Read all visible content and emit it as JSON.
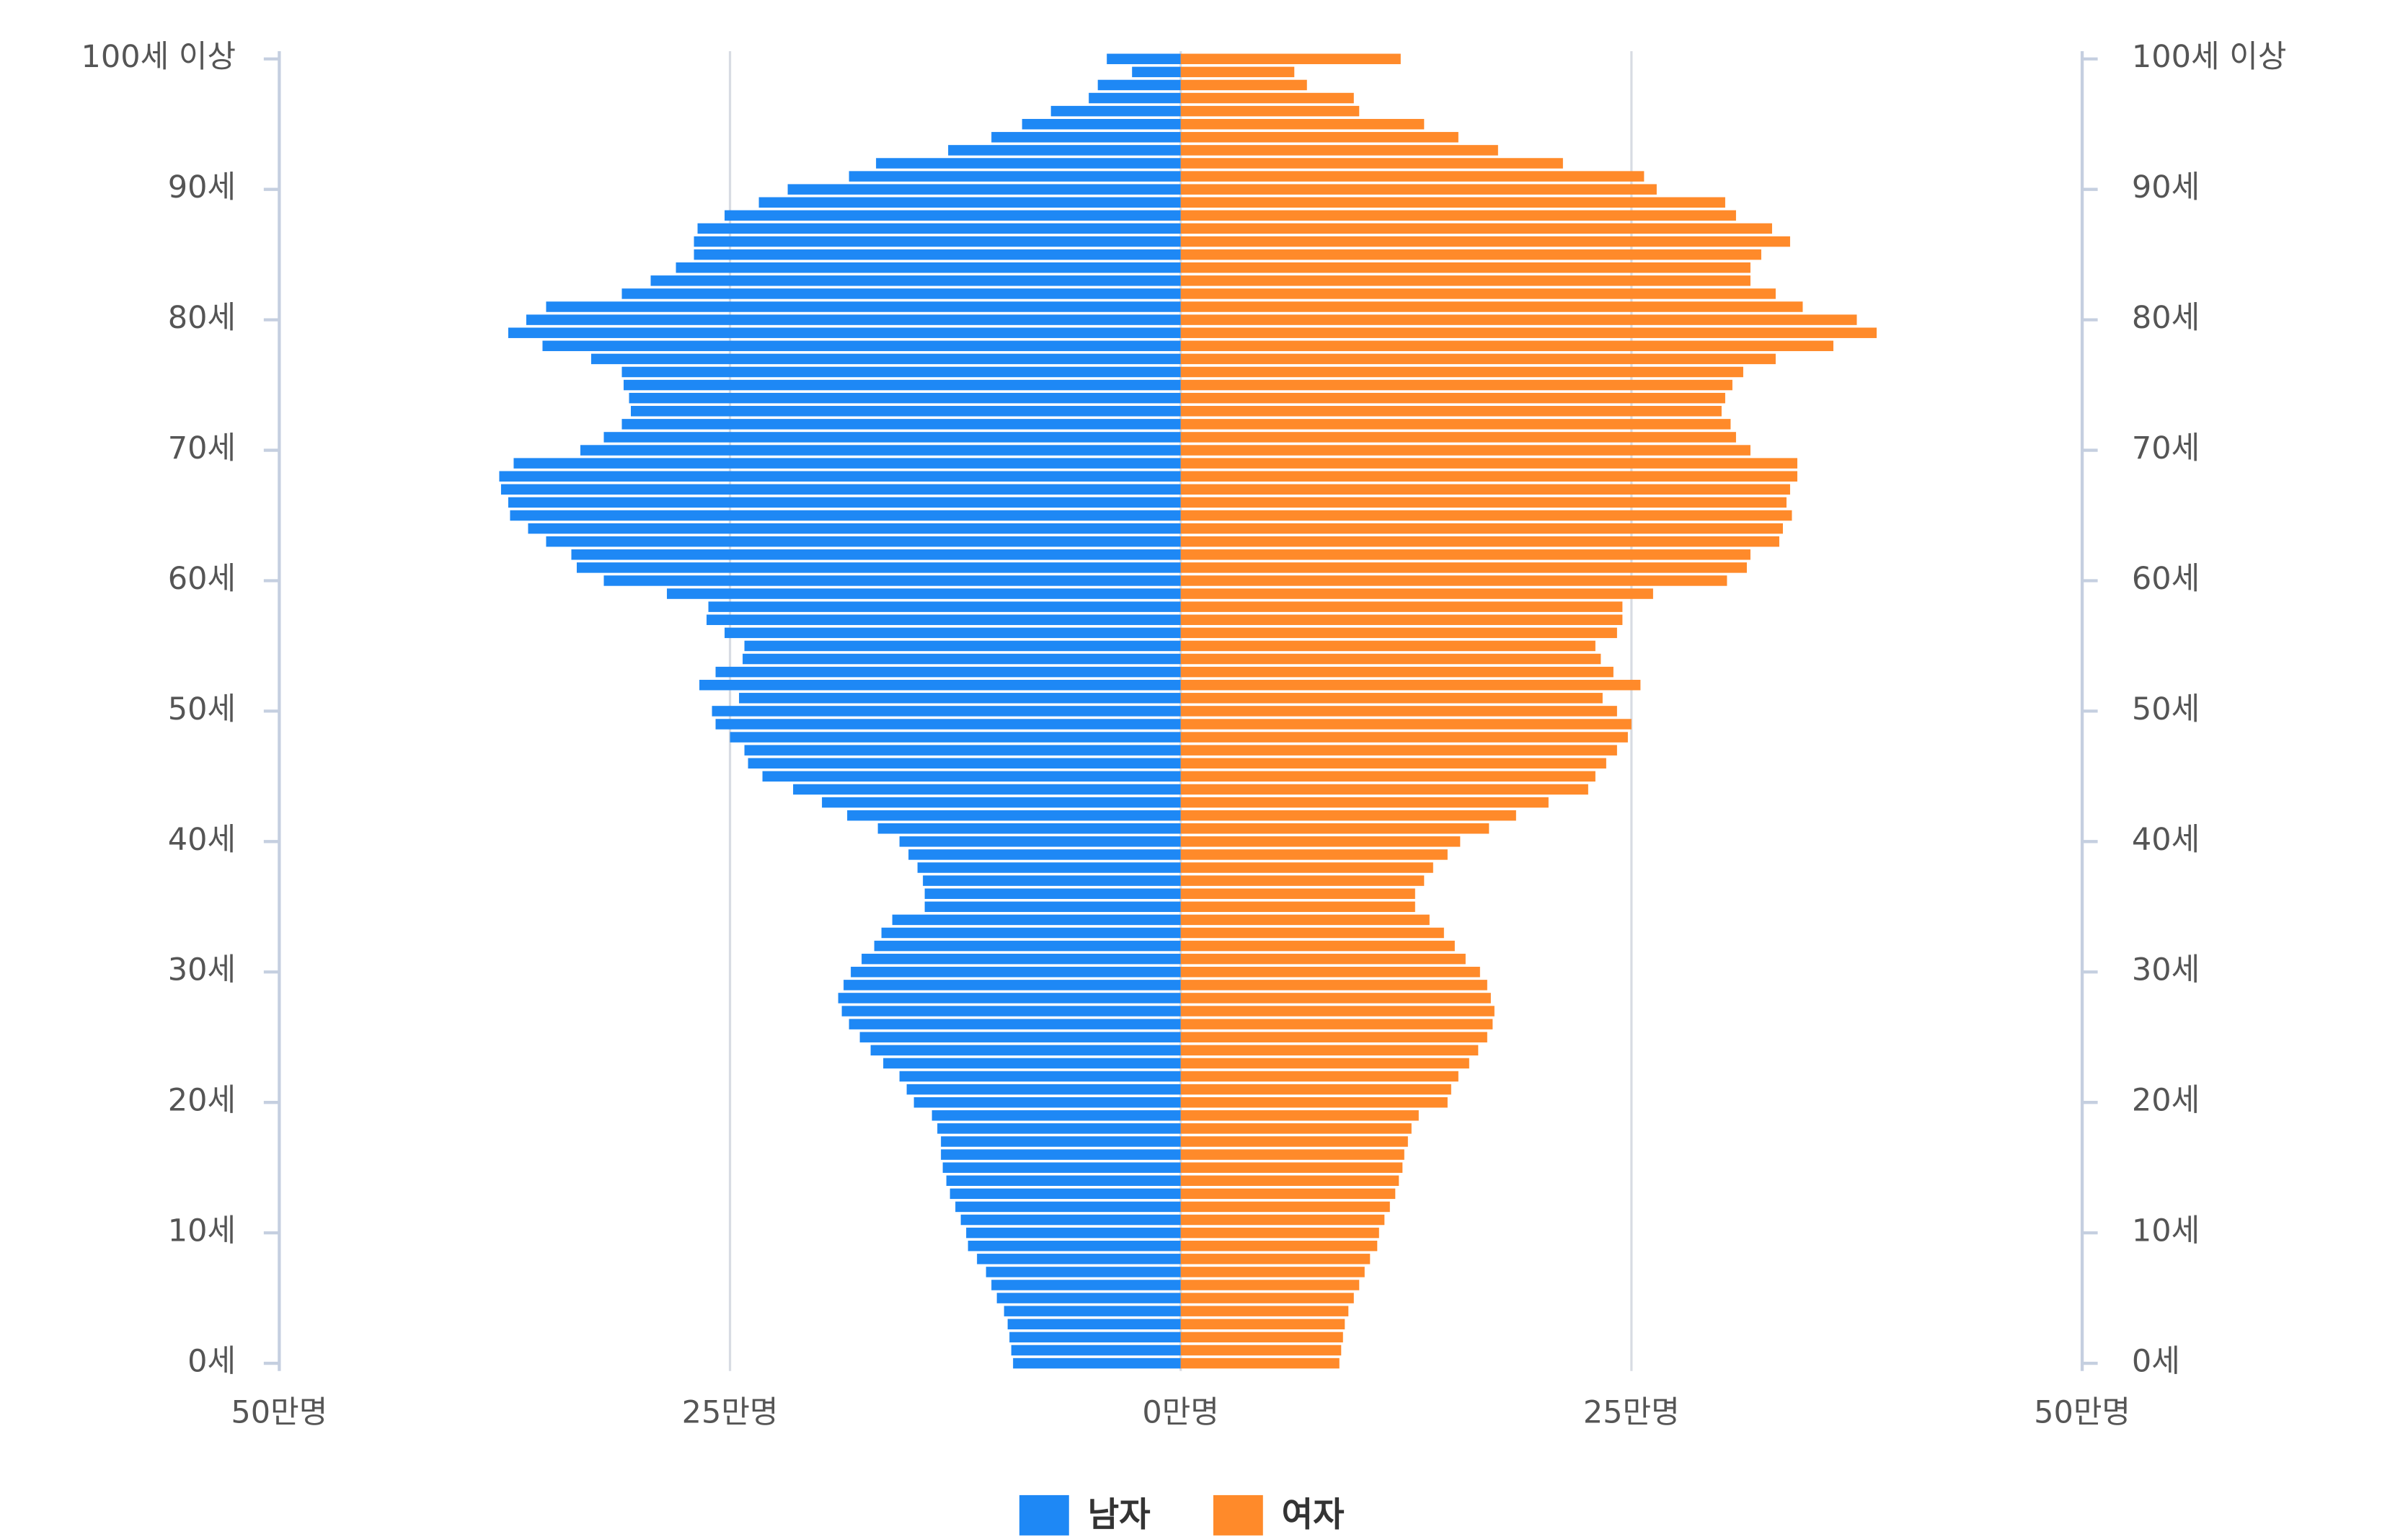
{
  "chart_data": {
    "type": "pyramid",
    "categories": [
      "0세",
      null,
      null,
      null,
      null,
      null,
      null,
      null,
      null,
      null,
      "10세",
      null,
      null,
      null,
      null,
      null,
      null,
      null,
      null,
      null,
      "20세",
      null,
      null,
      null,
      null,
      null,
      null,
      null,
      null,
      null,
      "30세",
      null,
      null,
      null,
      null,
      null,
      null,
      null,
      null,
      null,
      "40세",
      null,
      null,
      null,
      null,
      null,
      null,
      null,
      null,
      null,
      "50세",
      null,
      null,
      null,
      null,
      null,
      null,
      null,
      null,
      null,
      "60세",
      null,
      null,
      null,
      null,
      null,
      null,
      null,
      null,
      null,
      "70세",
      null,
      null,
      null,
      null,
      null,
      null,
      null,
      null,
      null,
      "80세",
      null,
      null,
      null,
      null,
      null,
      null,
      null,
      null,
      null,
      "90세",
      null,
      null,
      null,
      null,
      null,
      null,
      null,
      null,
      null,
      "100세 이상"
    ],
    "series": [
      {
        "name": "남자",
        "color": "#1e88f5",
        "side": "left",
        "values": [
          9.3,
          9.4,
          9.5,
          9.6,
          9.8,
          10.2,
          10.5,
          10.8,
          11.3,
          11.8,
          11.9,
          12.2,
          12.5,
          12.8,
          13.0,
          13.2,
          13.3,
          13.3,
          13.5,
          13.8,
          14.8,
          15.2,
          15.6,
          16.5,
          17.2,
          17.8,
          18.4,
          18.8,
          19.0,
          18.7,
          18.3,
          17.7,
          17.0,
          16.6,
          16.0,
          14.2,
          14.2,
          14.3,
          14.6,
          15.1,
          15.6,
          16.8,
          18.5,
          19.9,
          21.5,
          23.2,
          24.0,
          24.2,
          25.0,
          25.8,
          26.0,
          24.5,
          26.7,
          25.8,
          24.3,
          24.2,
          25.3,
          26.3,
          26.2,
          28.5,
          32.0,
          33.5,
          33.8,
          35.2,
          36.2,
          37.2,
          37.3,
          37.7,
          37.8,
          37.0,
          33.3,
          32.0,
          31.0,
          30.5,
          30.6,
          30.9,
          31.0,
          32.7,
          35.4,
          37.3,
          36.3,
          35.2,
          31.0,
          29.4,
          28.0,
          27.0,
          27.0,
          26.8,
          25.3,
          23.4,
          21.8,
          18.4,
          16.9,
          12.9,
          10.5,
          8.8,
          7.2,
          5.1,
          4.6,
          2.7,
          4.1
        ]
      },
      {
        "name": "여자",
        "color": "#ff8a2a",
        "side": "right",
        "values": [
          8.8,
          8.9,
          9.0,
          9.1,
          9.3,
          9.6,
          9.9,
          10.2,
          10.5,
          10.9,
          11.0,
          11.3,
          11.6,
          11.9,
          12.1,
          12.3,
          12.4,
          12.6,
          12.8,
          13.2,
          14.8,
          15.0,
          15.4,
          16.0,
          16.5,
          17.0,
          17.3,
          17.4,
          17.2,
          17.0,
          16.6,
          15.8,
          15.2,
          14.6,
          13.8,
          13.0,
          13.0,
          13.5,
          14.0,
          14.8,
          15.5,
          17.1,
          18.6,
          20.4,
          22.6,
          23.0,
          23.6,
          24.2,
          24.8,
          25.0,
          24.2,
          23.4,
          25.5,
          24.0,
          23.3,
          23.0,
          24.2,
          24.5,
          24.5,
          26.2,
          30.3,
          31.4,
          31.6,
          33.2,
          33.4,
          33.9,
          33.6,
          33.8,
          34.2,
          34.2,
          31.6,
          30.8,
          30.5,
          30.0,
          30.2,
          30.6,
          31.2,
          33.0,
          36.2,
          38.6,
          37.5,
          34.5,
          33.0,
          31.6,
          31.6,
          32.2,
          33.8,
          32.8,
          30.8,
          30.2,
          26.4,
          25.7,
          21.2,
          17.6,
          15.4,
          13.5,
          9.9,
          9.6,
          7.0,
          6.3,
          12.2
        ]
      }
    ],
    "xlim": [
      -50,
      50
    ],
    "xticks": [
      {
        "value": -50,
        "label": "50만명"
      },
      {
        "value": -25,
        "label": "25만명"
      },
      {
        "value": 0,
        "label": "0만명"
      },
      {
        "value": 25,
        "label": "25만명"
      },
      {
        "value": 50,
        "label": "50만명"
      }
    ],
    "grid": true,
    "legend": "bottom"
  }
}
